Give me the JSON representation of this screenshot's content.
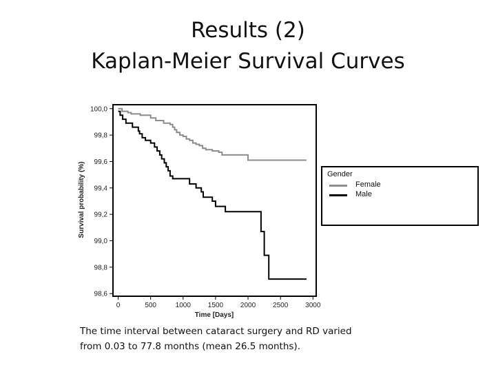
{
  "slide": {
    "title_line1": "Results (2)",
    "title_line2": "Kaplan-Meier Survival Curves",
    "caption_line1": "The time interval between cataract surgery and RD varied",
    "caption_line2": "from 0.03 to 77.8 months (mean 26.5 months)."
  },
  "chart_data": {
    "type": "line",
    "subtype": "step",
    "xlabel": "Time [Days]",
    "ylabel": "Survival probability (%)",
    "xlim": [
      -80,
      3050
    ],
    "ylim": [
      98.58,
      100.03
    ],
    "xticks": [
      0,
      500,
      1000,
      1500,
      2000,
      2500,
      3000
    ],
    "xtick_labels": [
      "0",
      "500",
      "1000",
      "1500",
      "2000",
      "2500",
      "3000"
    ],
    "yticks": [
      98.6,
      98.8,
      99.0,
      99.2,
      99.4,
      99.6,
      99.8,
      100.0
    ],
    "ytick_labels": [
      "98,6",
      "98,8",
      "99,0",
      "99,2",
      "99,4",
      "99,6",
      "99,8",
      "100,0"
    ],
    "grid": false,
    "legend": {
      "title": "Gender",
      "placement": "right"
    },
    "series": [
      {
        "name": "Female",
        "color": "#8c8c8c",
        "points": [
          [
            0,
            100.0
          ],
          [
            60,
            99.98
          ],
          [
            150,
            99.97
          ],
          [
            200,
            99.96
          ],
          [
            340,
            99.95
          ],
          [
            500,
            99.93
          ],
          [
            580,
            99.91
          ],
          [
            700,
            99.89
          ],
          [
            800,
            99.88
          ],
          [
            840,
            99.86
          ],
          [
            870,
            99.84
          ],
          [
            900,
            99.82
          ],
          [
            950,
            99.8
          ],
          [
            1000,
            99.79
          ],
          [
            1050,
            99.77
          ],
          [
            1100,
            99.76
          ],
          [
            1150,
            99.74
          ],
          [
            1200,
            99.73
          ],
          [
            1250,
            99.72
          ],
          [
            1300,
            99.7
          ],
          [
            1350,
            99.69
          ],
          [
            1450,
            99.68
          ],
          [
            1550,
            99.67
          ],
          [
            1600,
            99.65
          ],
          [
            2000,
            99.61
          ],
          [
            2900,
            99.61
          ]
        ]
      },
      {
        "name": "Male",
        "color": "#000000",
        "points": [
          [
            0,
            99.98
          ],
          [
            30,
            99.95
          ],
          [
            70,
            99.92
          ],
          [
            120,
            99.89
          ],
          [
            220,
            99.86
          ],
          [
            310,
            99.83
          ],
          [
            330,
            99.81
          ],
          [
            370,
            99.78
          ],
          [
            420,
            99.76
          ],
          [
            500,
            99.74
          ],
          [
            560,
            99.71
          ],
          [
            600,
            99.68
          ],
          [
            640,
            99.65
          ],
          [
            670,
            99.62
          ],
          [
            710,
            99.59
          ],
          [
            740,
            99.56
          ],
          [
            770,
            99.53
          ],
          [
            800,
            99.49
          ],
          [
            840,
            99.47
          ],
          [
            1100,
            99.43
          ],
          [
            1200,
            99.4
          ],
          [
            1280,
            99.37
          ],
          [
            1310,
            99.33
          ],
          [
            1450,
            99.3
          ],
          [
            1500,
            99.26
          ],
          [
            1650,
            99.22
          ],
          [
            2200,
            99.07
          ],
          [
            2250,
            98.89
          ],
          [
            2320,
            98.71
          ],
          [
            2900,
            98.71
          ]
        ]
      }
    ]
  }
}
